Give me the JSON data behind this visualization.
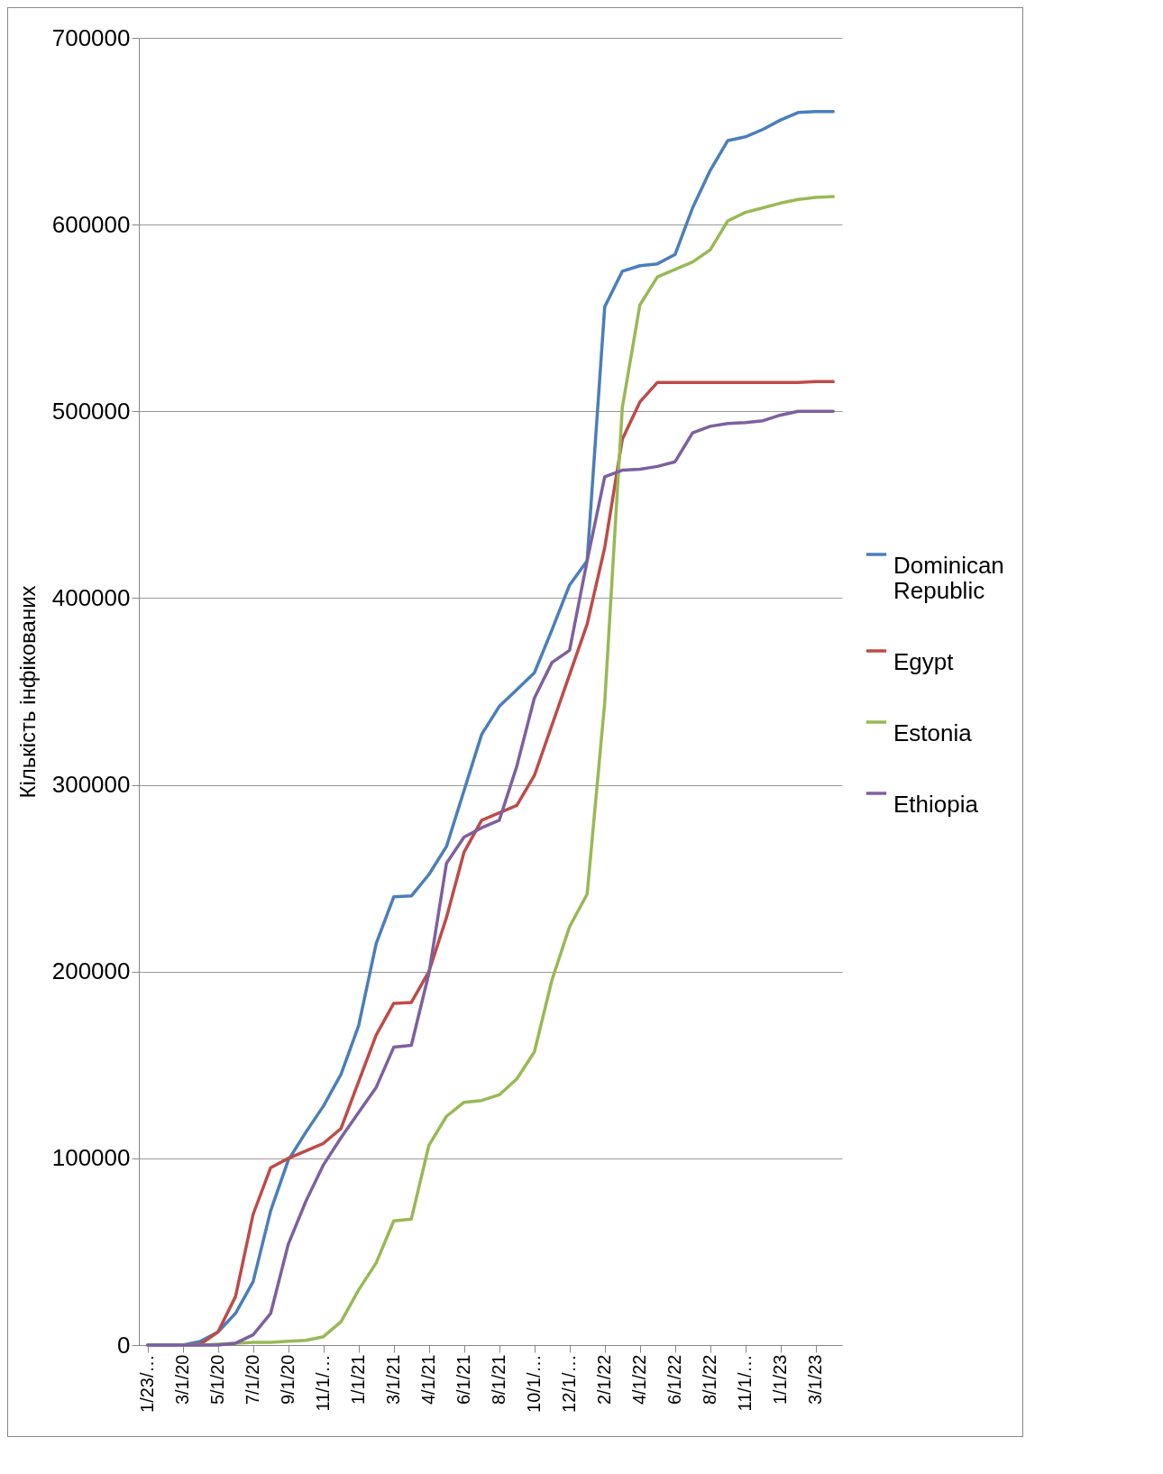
{
  "chart_data": {
    "type": "line",
    "ylabel": "Кількість інфікованих",
    "categories": [
      "1/23/…",
      null,
      "3/1/20",
      null,
      "5/1/20",
      null,
      "7/1/20",
      null,
      "9/1/20",
      null,
      "11/1/…",
      null,
      "1/1/21",
      null,
      "3/1/21",
      null,
      "4/1/21",
      null,
      "6/1/21",
      null,
      "8/1/21",
      null,
      "10/1/…",
      null,
      "12/1/…",
      null,
      "2/1/22",
      null,
      "4/1/22",
      null,
      "6/1/22",
      null,
      "8/1/22",
      null,
      "11/1/…",
      null,
      "1/1/23",
      null,
      "3/1/23",
      null
    ],
    "series": [
      {
        "name": "Dominican Republic",
        "color": "#4a7ebb",
        "values": [
          0,
          0,
          0,
          2000,
          7000,
          17000,
          34000,
          72000,
          99000,
          114000,
          128000,
          145000,
          171000,
          215000,
          240000,
          240500,
          252000,
          267000,
          297000,
          327000,
          342000,
          351000,
          360000,
          383000,
          407000,
          420000,
          556000,
          575000,
          578000,
          579000,
          584000,
          609000,
          629000,
          645000,
          647000,
          651000,
          656000,
          660000,
          660500,
          660500
        ]
      },
      {
        "name": "Egypt",
        "color": "#be4b48",
        "values": [
          null,
          null,
          0,
          500,
          7000,
          26000,
          70000,
          95000,
          100000,
          104000,
          108000,
          116000,
          141000,
          166000,
          183000,
          183500,
          200000,
          229000,
          264000,
          281000,
          285000,
          289000,
          305000,
          332000,
          359000,
          386000,
          427000,
          485000,
          505000,
          515500,
          515500,
          515500,
          515500,
          515500,
          515500,
          515500,
          515500,
          515500,
          516000,
          516000
        ]
      },
      {
        "name": "Estonia",
        "color": "#98b954",
        "values": [
          null,
          null,
          0,
          0,
          500,
          1000,
          1500,
          1500,
          2000,
          2500,
          4500,
          12500,
          29500,
          44000,
          66500,
          67500,
          107000,
          122500,
          130000,
          131000,
          134000,
          142500,
          157000,
          195500,
          224000,
          241500,
          344000,
          502000,
          557000,
          572000,
          576000,
          580000,
          586500,
          602000,
          606500,
          609000,
          611500,
          613500,
          614500,
          615000
        ]
      },
      {
        "name": "Ethiopia",
        "color": "#7d60a0",
        "values": [
          0,
          0,
          0,
          0,
          0,
          1000,
          5500,
          17000,
          54000,
          77000,
          96500,
          111000,
          124500,
          138000,
          159500,
          160500,
          199000,
          258000,
          272000,
          277000,
          281000,
          310000,
          346500,
          365500,
          372000,
          420000,
          465000,
          468500,
          469000,
          470500,
          473000,
          488500,
          492000,
          493500,
          494000,
          495000,
          498000,
          500000,
          500000,
          500000
        ]
      }
    ],
    "ylim": [
      0,
      700000
    ],
    "yticks": [
      0,
      100000,
      200000,
      300000,
      400000,
      500000,
      600000,
      700000
    ],
    "grid": "y",
    "legend": "right",
    "marker": "none",
    "line_style": "solid"
  }
}
